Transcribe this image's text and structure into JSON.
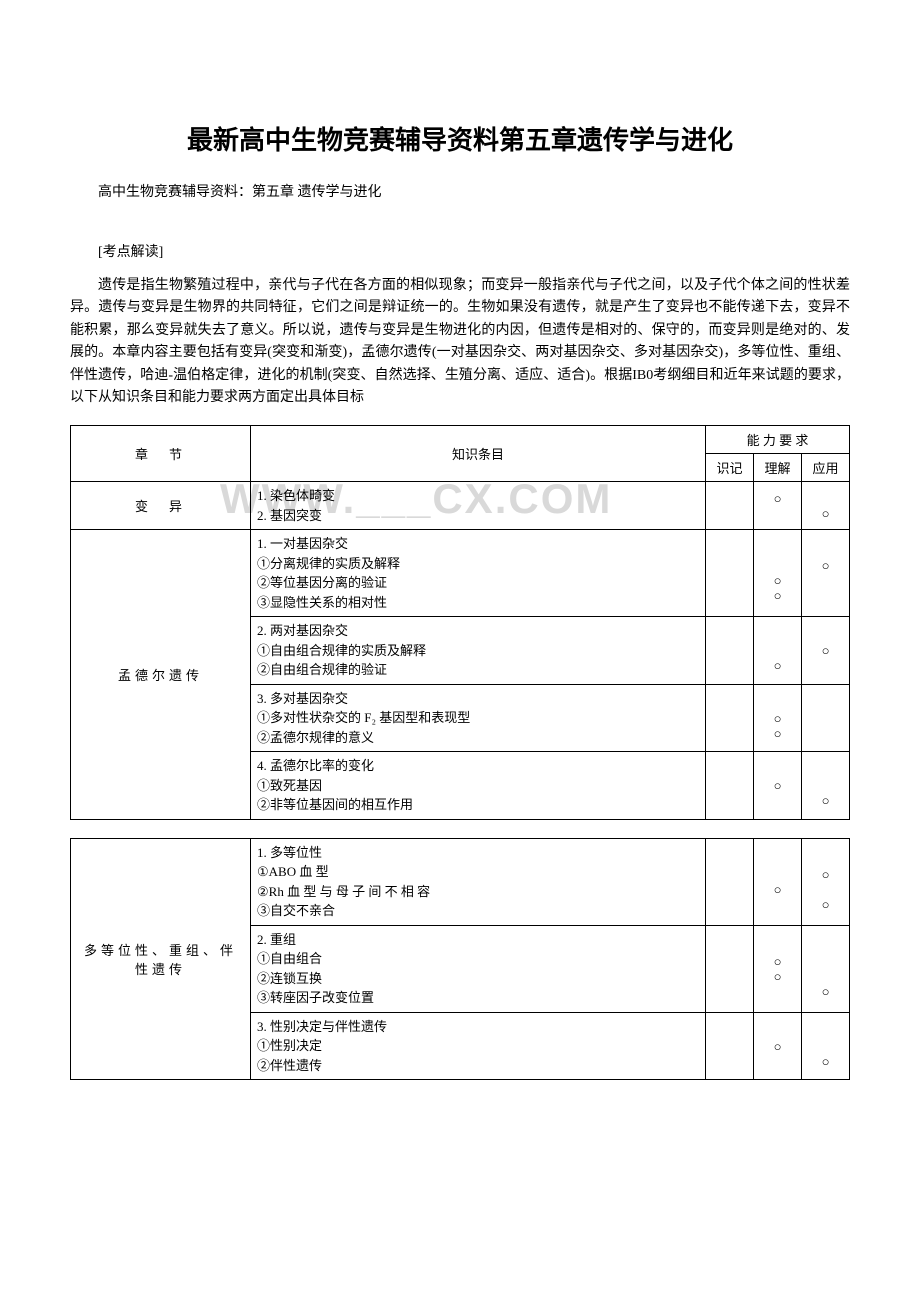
{
  "title": "最新高中生物竞赛辅导资料第五章遗传学与进化",
  "subtitle": "高中生物竞赛辅导资料：第五章 遗传学与进化",
  "section_heading": "[考点解读]",
  "body_text": "遗传是指生物繁殖过程中，亲代与子代在各方面的相似现象；而变异一般指亲代与子代之间，以及子代个体之间的性状差异。遗传与变异是生物界的共同特征，它们之间是辩证统一的。生物如果没有遗传，就是产生了变异也不能传递下去，变异不能积累，那么变异就失去了意义。所以说，遗传与变异是生物进化的内因，但遗传是相对的、保守的，而变异则是绝对的、发展的。本章内容主要包括有变异(突变和渐变)，孟德尔遗传(一对基因杂交、两对基因杂交、多对基因杂交)，多等位性、重组、伴性遗传，哈迪-温伯格定律，进化的机制(突变、自然选择、生殖分离、适应、适合)。根据IB0考纲细目和近年来试题的要求，以下从知识条目和能力要求两方面定出具体目标",
  "watermark": "WWW.___CX.COM",
  "circle_mark": "○",
  "header": {
    "chapter": "章　节",
    "item": "知识条目",
    "ability": "能 力 要 求",
    "a1": "识记",
    "a2": "理解",
    "a3": "应用"
  },
  "table1": {
    "rows": [
      {
        "chapter": "变　异",
        "chapter_rowspan": 1,
        "item": "1. 染色体畸变\n2. 基因突变",
        "marks": [
          [
            "",
            "○",
            ""
          ],
          [
            "",
            "",
            "○"
          ]
        ]
      },
      {
        "chapter": "孟德尔遗传",
        "chapter_rowspan": 4,
        "item": "1. 一对基因杂交\n①分离规律的实质及解释\n②等位基因分离的验证\n③显隐性关系的相对性",
        "marks": [
          [
            "",
            "",
            ""
          ],
          [
            "",
            "",
            "○"
          ],
          [
            "",
            "○",
            ""
          ],
          [
            "",
            "○",
            ""
          ]
        ]
      },
      {
        "item": "2. 两对基因杂交\n①自由组合规律的实质及解释\n②自由组合规律的验证",
        "marks": [
          [
            "",
            "",
            ""
          ],
          [
            "",
            "",
            "○"
          ],
          [
            "",
            "○",
            ""
          ]
        ]
      },
      {
        "item": "3. 多对基因杂交\n①多对性状杂交的 F₂ 基因型和表现型\n②孟德尔规律的意义",
        "marks": [
          [
            "",
            "",
            ""
          ],
          [
            "",
            "○",
            ""
          ],
          [
            "",
            "○",
            ""
          ]
        ]
      },
      {
        "item": "4. 孟德尔比率的变化\n①致死基因\n②非等位基因间的相互作用",
        "marks": [
          [
            "",
            "",
            ""
          ],
          [
            "",
            "○",
            ""
          ],
          [
            "",
            "",
            "○"
          ]
        ]
      }
    ]
  },
  "table2": {
    "rows": [
      {
        "chapter": "多等位性、重组、伴性遗传",
        "chapter_rowspan": 3,
        "item": "1. 多等位性\n①ABO 血 型\n②Rh 血 型 与 母 子 间 不 相 容\n③自交不亲合",
        "marks": [
          [
            "",
            "",
            ""
          ],
          [
            "",
            "",
            "○"
          ],
          [
            "",
            "○",
            ""
          ],
          [
            "",
            "",
            "○"
          ]
        ]
      },
      {
        "item": "2. 重组\n①自由组合\n②连锁互换\n③转座因子改变位置",
        "marks": [
          [
            "",
            "",
            ""
          ],
          [
            "",
            "○",
            ""
          ],
          [
            "",
            "○",
            ""
          ],
          [
            "",
            "",
            "○"
          ]
        ]
      },
      {
        "item": "3. 性别决定与伴性遗传\n①性别决定\n②伴性遗传",
        "marks": [
          [
            "",
            "",
            ""
          ],
          [
            "",
            "○",
            ""
          ],
          [
            "",
            "",
            "○"
          ]
        ]
      }
    ]
  }
}
